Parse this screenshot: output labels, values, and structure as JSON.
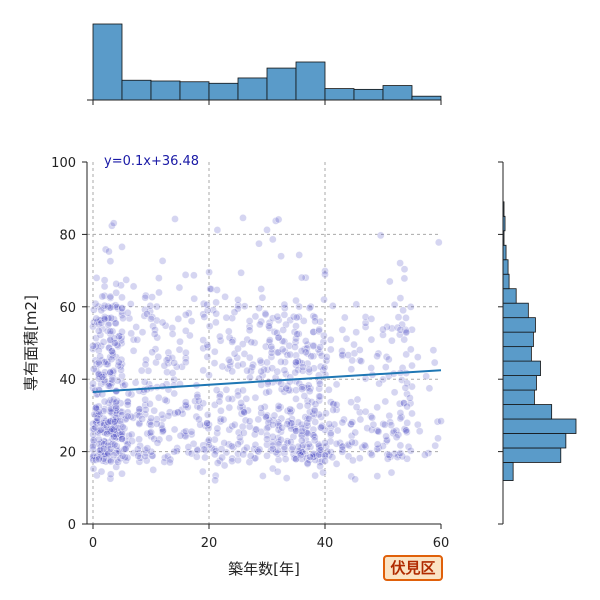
{
  "chart_data": {
    "type": "scatter",
    "xlabel": "築年数[年]",
    "ylabel": "専有面積[m2]",
    "xlim": [
      0,
      60
    ],
    "ylim": [
      0,
      100
    ],
    "xticks": [
      "0",
      "20",
      "40",
      "60"
    ],
    "yticks": [
      "0",
      "20",
      "40",
      "60",
      "80",
      "100"
    ],
    "grid": true,
    "regression": {
      "label": "y=0.1x+36.48",
      "slope": 0.1,
      "intercept": 36.48
    },
    "ward_label": "伏見区",
    "colors": {
      "points": "#3f3fbf",
      "line": "#1f77b4",
      "hist": "#5a9bc9",
      "hist_edge": "#111111"
    },
    "top_histogram": {
      "bin_edges": [
        0,
        5,
        10,
        15,
        20,
        25,
        30,
        35,
        40,
        45,
        50,
        55,
        60
      ],
      "counts": [
        100,
        26,
        25,
        24,
        22,
        29,
        42,
        50,
        15,
        14,
        19,
        5
      ]
    },
    "right_histogram": {
      "bin_edges": [
        12,
        17,
        21,
        25,
        29,
        33,
        37,
        41,
        45,
        49,
        53,
        57,
        61,
        65,
        69,
        73,
        77,
        81,
        85,
        89
      ],
      "counts": [
        10,
        57,
        62,
        72,
        48,
        31,
        33,
        37,
        28,
        30,
        32,
        25,
        13,
        6,
        5,
        3,
        1,
        2,
        1
      ]
    }
  }
}
